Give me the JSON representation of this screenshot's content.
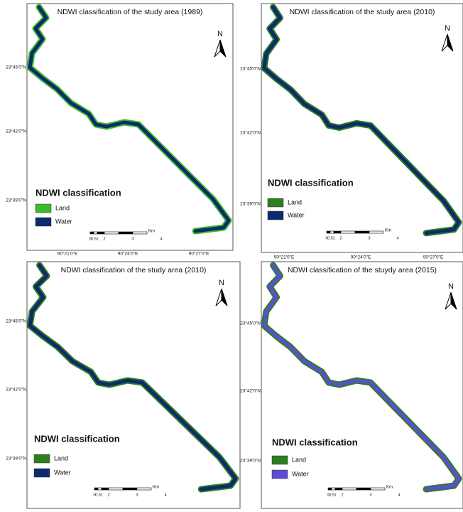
{
  "panels": [
    {
      "title": "NDWI classification of the study area (1989)",
      "north": "N",
      "lat_labels": [
        "23°45'0\"N",
        "23°42'0\"N",
        "23°39'0\"N"
      ],
      "lon_labels": [
        "90°21'0\"E",
        "90°24'0\"E",
        "90°27'0\"E"
      ],
      "land_color": "#3dbb2a",
      "water_color": "#0d2a6e",
      "legend": {
        "title": "NDWI classification",
        "items": [
          {
            "label": "Land",
            "color": "#3dbb2a"
          },
          {
            "label": "Water",
            "color": "#0d2a6e"
          }
        ]
      },
      "scale": {
        "ticks": [
          "0",
          "0.5",
          "1",
          "2",
          "3",
          "4"
        ],
        "unit": "Km"
      }
    },
    {
      "title": "NDWI classification of the study area (2010)",
      "north": "N",
      "lat_labels": [
        "23°45'0\"N",
        "23°42'0\"N",
        "23°39'0\"N"
      ],
      "lon_labels": [
        "90°21'0\"E",
        "90°24'0\"E",
        "90°27'0\"E"
      ],
      "land_color": "#2e7d1f",
      "water_color": "#0d2a6e",
      "legend": {
        "title": "NDWI classification",
        "items": [
          {
            "label": "Land",
            "color": "#2e7d1f"
          },
          {
            "label": "Water",
            "color": "#0d2a6e"
          }
        ]
      },
      "scale": {
        "ticks": [
          "0",
          "0.5",
          "1",
          "2",
          "3",
          "4"
        ],
        "unit": "Km"
      }
    },
    {
      "title": "NDWI classification of the study area (2010)",
      "north": "N",
      "lat_labels": [
        "23°45'0\"N",
        "23°42'0\"N",
        "23°39'0\"N"
      ],
      "land_color": "#2e7d1f",
      "water_color": "#0d2a6e",
      "legend": {
        "title": "NDWI classification",
        "items": [
          {
            "label": "Land",
            "color": "#2e7d1f"
          },
          {
            "label": "Water",
            "color": "#0d2a6e"
          }
        ]
      },
      "scale": {
        "ticks": [
          "0",
          "0.5",
          "1",
          "2",
          "3",
          "4"
        ],
        "unit": "Km"
      }
    },
    {
      "title": "NDWI classification of the stuydy area (2015)",
      "north": "N",
      "lat_labels": [
        "23°45'0\"N",
        "23°42'0\"N",
        "23°39'0\"N"
      ],
      "land_color": "#2e7d1f",
      "water_color": "#5a4fd0",
      "legend": {
        "title": "NDWI classification",
        "items": [
          {
            "label": "Land",
            "color": "#2e7d1f"
          },
          {
            "label": "Water",
            "color": "#5a4fd0"
          }
        ]
      },
      "scale": {
        "ticks": [
          "0",
          "0.5",
          "1",
          "2",
          "3",
          "4"
        ],
        "unit": "Km"
      }
    }
  ]
}
